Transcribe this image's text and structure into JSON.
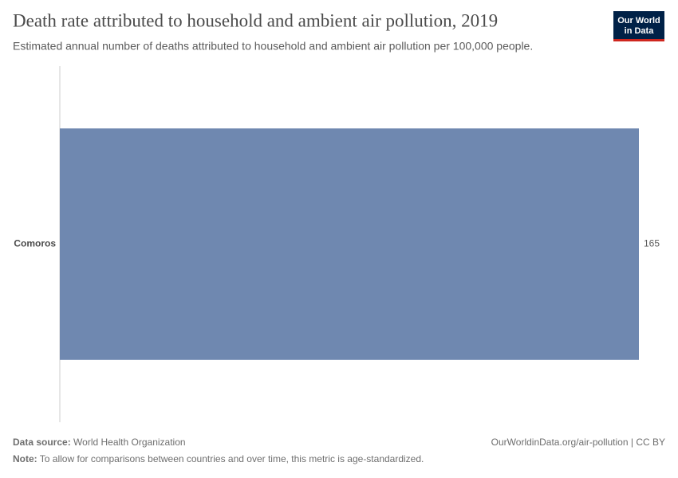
{
  "logo": [
    "Our World",
    "in Data"
  ],
  "chart_data": {
    "type": "bar",
    "orientation": "horizontal",
    "title": "Death rate attributed to household and ambient air pollution, 2019",
    "subtitle": "Estimated annual number of deaths attributed to household and ambient air pollution per 100,000 people.",
    "categories": [
      "Comoros"
    ],
    "values": [
      165
    ],
    "color": "#6f88b0"
  },
  "footer": {
    "source_label": "Data source:",
    "source": "World Health Organization",
    "url": "OurWorldinData.org/air-pollution | CC BY",
    "note_label": "Note:",
    "note": "To allow for comparisons between countries and over time, this metric is age-standardized."
  }
}
